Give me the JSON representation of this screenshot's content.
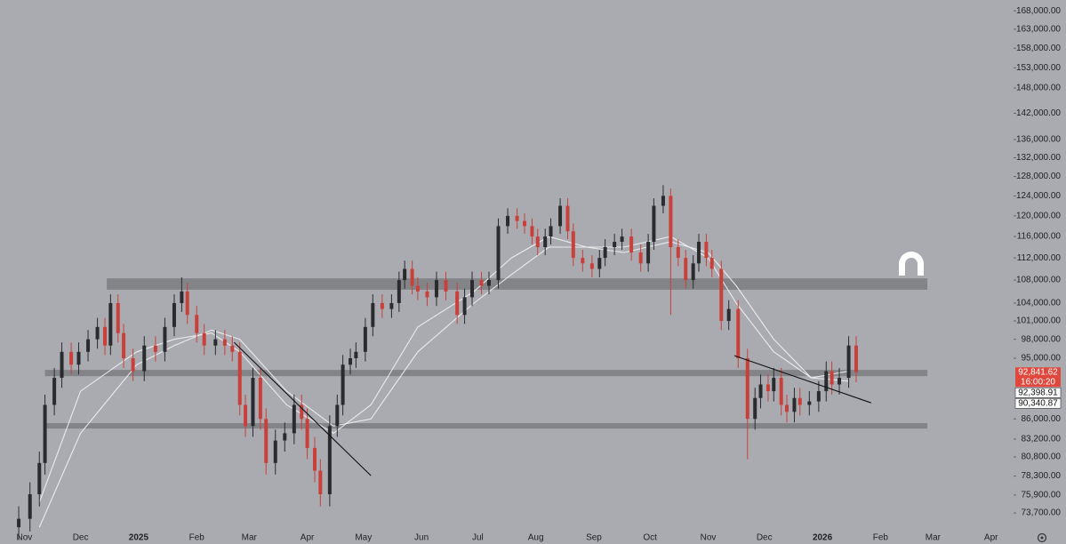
{
  "chart_data": {
    "type": "candlestick",
    "log_scale": true,
    "xlim": [
      -13,
      528
    ],
    "ylim": [
      71800,
      171000
    ],
    "up_color": "#2a2b2e",
    "down_color": "#c9403a",
    "xticks": [
      {
        "value": 0,
        "label": "Nov"
      },
      {
        "value": 30,
        "label": "Dec"
      },
      {
        "value": 61,
        "label": "2025"
      },
      {
        "value": 92,
        "label": "Feb"
      },
      {
        "value": 120,
        "label": "Mar"
      },
      {
        "value": 151,
        "label": "Apr"
      },
      {
        "value": 181,
        "label": "May"
      },
      {
        "value": 212,
        "label": "Jun"
      },
      {
        "value": 242,
        "label": "Jul"
      },
      {
        "value": 273,
        "label": "Aug"
      },
      {
        "value": 304,
        "label": "Sep"
      },
      {
        "value": 334,
        "label": "Oct"
      },
      {
        "value": 365,
        "label": "Nov"
      },
      {
        "value": 395,
        "label": "Dec"
      },
      {
        "value": 426,
        "label": "2026"
      },
      {
        "value": 457,
        "label": "Feb"
      },
      {
        "value": 485,
        "label": "Mar"
      },
      {
        "value": 516,
        "label": "Apr"
      }
    ],
    "yticks": [
      {
        "value": 168000,
        "label": "168,000.00"
      },
      {
        "value": 163000,
        "label": "163,000.00"
      },
      {
        "value": 158000,
        "label": "158,000.00"
      },
      {
        "value": 153000,
        "label": "153,000.00"
      },
      {
        "value": 148000,
        "label": "148,000.00"
      },
      {
        "value": 142000,
        "label": "142,000.00"
      },
      {
        "value": 136000,
        "label": "136,000.00"
      },
      {
        "value": 132000,
        "label": "132,000.00"
      },
      {
        "value": 128000,
        "label": "128,000.00"
      },
      {
        "value": 124000,
        "label": "124,000.00"
      },
      {
        "value": 120000,
        "label": "120,000.00"
      },
      {
        "value": 116000,
        "label": "116,000.00"
      },
      {
        "value": 112000,
        "label": "112,000.00"
      },
      {
        "value": 108000,
        "label": "108,000.00"
      },
      {
        "value": 104000,
        "label": "104,000.00"
      },
      {
        "value": 101000,
        "label": "101,000.00"
      },
      {
        "value": 98000,
        "label": "98,000.00"
      },
      {
        "value": 95000,
        "label": "95,000.00"
      },
      {
        "value": 86000,
        "label": "86,000.00"
      },
      {
        "value": 83200,
        "label": "83,200.00"
      },
      {
        "value": 80800,
        "label": "80,800.00"
      },
      {
        "value": 78300,
        "label": "78,300.00"
      },
      {
        "value": 75900,
        "label": "75,900.00"
      },
      {
        "value": 73700,
        "label": "73,700.00"
      }
    ],
    "x": [
      -3,
      3,
      8,
      11,
      16,
      20,
      25,
      29,
      34,
      39,
      43,
      46,
      50,
      53,
      58,
      64,
      70,
      75,
      80,
      84,
      87,
      92,
      96,
      102,
      107,
      111,
      115,
      118,
      122,
      126,
      129,
      134,
      139,
      144,
      148,
      151,
      155,
      158,
      163,
      167,
      170,
      174,
      177,
      182,
      186,
      191,
      196,
      200,
      203,
      207,
      210,
      215,
      220,
      225,
      231,
      235,
      239,
      244,
      248,
      253,
      258,
      263,
      267,
      271,
      274,
      278,
      281,
      286,
      290,
      293,
      298,
      303,
      307,
      310,
      315,
      319,
      324,
      329,
      333,
      336,
      341,
      345,
      349,
      353,
      357,
      360,
      364,
      367,
      372,
      376,
      381,
      386,
      390,
      393,
      397,
      400,
      404,
      407,
      411,
      414,
      419,
      424,
      428,
      431,
      435,
      440,
      444
    ],
    "open": [
      72000,
      73000,
      76000,
      80000,
      88000,
      92000,
      96000,
      94000,
      96000,
      98000,
      100000,
      97000,
      104000,
      99000,
      95000,
      93000,
      97000,
      96000,
      100000,
      104000,
      106000,
      102000,
      99000,
      97000,
      98000,
      97000,
      96000,
      88000,
      85000,
      92000,
      86000,
      80000,
      83000,
      84000,
      88000,
      86000,
      82000,
      79000,
      76000,
      85000,
      88000,
      94000,
      95000,
      96000,
      100000,
      104000,
      103000,
      104000,
      108000,
      110000,
      107000,
      106000,
      105000,
      108000,
      106000,
      102000,
      105000,
      108000,
      107000,
      108000,
      118000,
      120000,
      119000,
      118000,
      116000,
      114000,
      116000,
      118000,
      122000,
      117000,
      112000,
      111000,
      110000,
      112000,
      114000,
      115000,
      116000,
      113000,
      111000,
      115000,
      122000,
      124000,
      114000,
      112000,
      108000,
      111000,
      115000,
      112000,
      110000,
      101000,
      103000,
      95000,
      86000,
      89000,
      91000,
      90000,
      92000,
      88000,
      87000,
      89000,
      88000,
      88500,
      90000,
      93000,
      91000,
      92000,
      97000
    ],
    "high": [
      74500,
      77500,
      81500,
      89500,
      93500,
      97500,
      97500,
      97500,
      99500,
      101500,
      101500,
      105500,
      105500,
      100500,
      96500,
      98500,
      98500,
      101500,
      105500,
      108500,
      107500,
      103500,
      100500,
      99500,
      99500,
      98500,
      97500,
      89500,
      93500,
      93500,
      87500,
      84500,
      85500,
      89500,
      89500,
      87500,
      83500,
      80500,
      86500,
      89500,
      95500,
      96500,
      97500,
      101500,
      105500,
      105500,
      105500,
      109500,
      111500,
      111500,
      108500,
      107500,
      109500,
      109500,
      107500,
      106500,
      109500,
      109500,
      109500,
      119500,
      121500,
      121500,
      120500,
      119500,
      117500,
      117500,
      119500,
      123500,
      123500,
      118500,
      113500,
      112500,
      113500,
      115500,
      116500,
      117500,
      117500,
      114500,
      116500,
      123500,
      126200,
      125500,
      115500,
      113500,
      112500,
      116500,
      116500,
      113500,
      111500,
      104500,
      104500,
      96500,
      90500,
      92500,
      92500,
      93500,
      93500,
      89500,
      90500,
      90500,
      90000,
      91500,
      94500,
      94500,
      93500,
      98500,
      98500
    ],
    "low": [
      70500,
      71500,
      74500,
      78500,
      86500,
      90500,
      92500,
      92500,
      94500,
      96500,
      95500,
      95500,
      97500,
      93500,
      91500,
      91500,
      94500,
      94500,
      98500,
      102500,
      100500,
      97500,
      95500,
      95500,
      95500,
      94500,
      86500,
      83500,
      83500,
      84500,
      78500,
      78500,
      81500,
      82500,
      84500,
      80500,
      77500,
      74500,
      74500,
      83500,
      86500,
      92500,
      93500,
      94500,
      98500,
      101500,
      101500,
      102500,
      106500,
      105500,
      104500,
      103500,
      103500,
      104500,
      100500,
      100500,
      103500,
      105500,
      105500,
      106500,
      116500,
      117500,
      116500,
      114500,
      112500,
      112500,
      114500,
      116500,
      115500,
      110500,
      109500,
      108500,
      108500,
      110500,
      112500,
      113500,
      111500,
      109500,
      109500,
      113500,
      120500,
      102000,
      110500,
      106500,
      106500,
      109500,
      110500,
      108500,
      99500,
      99500,
      93500,
      80500,
      84500,
      87500,
      88500,
      88500,
      86500,
      85500,
      85500,
      86500,
      86500,
      87000,
      88500,
      89500,
      89500,
      90500,
      91342
    ],
    "close": [
      73000,
      76000,
      80000,
      88000,
      92000,
      96000,
      94000,
      96000,
      98000,
      100000,
      97000,
      104000,
      99000,
      95000,
      93000,
      97000,
      96000,
      100000,
      104000,
      106000,
      102000,
      99000,
      97000,
      98000,
      97000,
      96000,
      88000,
      85000,
      92000,
      86000,
      80000,
      83000,
      84000,
      88000,
      86000,
      82000,
      79000,
      76000,
      85000,
      88000,
      94000,
      95000,
      96000,
      100000,
      104000,
      103000,
      104000,
      108000,
      110000,
      107000,
      106000,
      105000,
      108000,
      106000,
      102000,
      105000,
      108000,
      107000,
      108000,
      118000,
      120000,
      119000,
      118000,
      116000,
      114000,
      116000,
      118000,
      122000,
      117000,
      112000,
      111000,
      110000,
      112000,
      114000,
      115000,
      116000,
      113000,
      111000,
      115000,
      122000,
      124000,
      114000,
      112000,
      108000,
      111000,
      115000,
      112000,
      110000,
      101000,
      103000,
      95000,
      86000,
      89000,
      91000,
      90000,
      92000,
      88000,
      87000,
      89000,
      88000,
      88500,
      90000,
      93000,
      91000,
      92000,
      97000,
      92842
    ],
    "zones": [
      {
        "x": [
          44,
          482
        ],
        "y": [
          106300,
          108300
        ]
      },
      {
        "x": [
          11,
          482
        ],
        "y": [
          92250,
          93200
        ]
      },
      {
        "x": [
          11,
          482
        ],
        "y": [
          84650,
          85400
        ]
      }
    ],
    "trendlines": [
      {
        "x": [
          112,
          185
        ],
        "y": [
          97500,
          78350
        ]
      },
      {
        "x": [
          379,
          452
        ],
        "y": [
          95400,
          88300
        ]
      }
    ],
    "moving_averages": [
      {
        "color": "#f2f2f2",
        "x": [
          8,
          30,
          60,
          80,
          100,
          115,
          140,
          165,
          185,
          210,
          240,
          260,
          280,
          300,
          320,
          345,
          365,
          380,
          400,
          420,
          440
        ],
        "values": [
          75000,
          90000,
          96000,
          98000,
          99000,
          96000,
          88000,
          84000,
          88000,
          100000,
          106000,
          112000,
          116000,
          114000,
          114000,
          116000,
          112000,
          104000,
          96000,
          92000,
          93000
        ]
      },
      {
        "color": "#f2f2f2",
        "x": [
          8,
          30,
          60,
          80,
          100,
          115,
          140,
          165,
          185,
          210,
          240,
          260,
          280,
          300,
          320,
          345,
          365,
          380,
          400,
          420,
          440
        ],
        "values": [
          72000,
          84000,
          94000,
          97000,
          99500,
          98000,
          90000,
          85000,
          86000,
          96000,
          104000,
          109000,
          114000,
          114000,
          113000,
          115000,
          113000,
          107000,
          98000,
          92000,
          91500
        ]
      }
    ],
    "price_labels": [
      {
        "value": 92841.62,
        "label": "92,841.62",
        "countdown": "16:00:20",
        "color": "#e0483e"
      },
      {
        "value": 92398.91,
        "label": "92,398.91",
        "color": "#ffffff"
      },
      {
        "value": 90340.87,
        "label": "90,340.87",
        "color": "#ffffff"
      }
    ]
  }
}
